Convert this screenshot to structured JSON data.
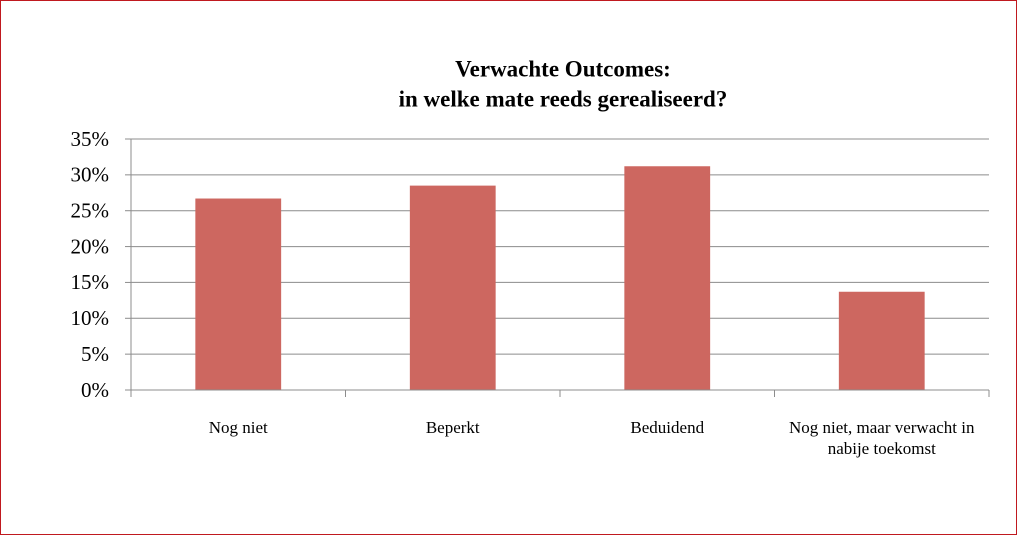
{
  "chart_data": {
    "type": "bar",
    "title": [
      "Verwachte Outcomes:",
      "in welke mate reeds gerealiseerd?"
    ],
    "categories": [
      "Nog niet",
      "Beperkt",
      "Beduidend",
      "Nog niet, maar verwacht in nabije toekomst"
    ],
    "values": [
      26.7,
      28.5,
      31.2,
      13.7
    ],
    "color": "#cd6760",
    "ylim": [
      0,
      35
    ],
    "yticks": [
      {
        "value": 0,
        "label": "0%"
      },
      {
        "value": 5,
        "label": "5%"
      },
      {
        "value": 10,
        "label": "10%"
      },
      {
        "value": 15,
        "label": "15%"
      },
      {
        "value": 20,
        "label": "20%"
      },
      {
        "value": 25,
        "label": "25%"
      },
      {
        "value": 30,
        "label": "30%"
      },
      {
        "value": 35,
        "label": "35%"
      }
    ],
    "grid": true
  }
}
